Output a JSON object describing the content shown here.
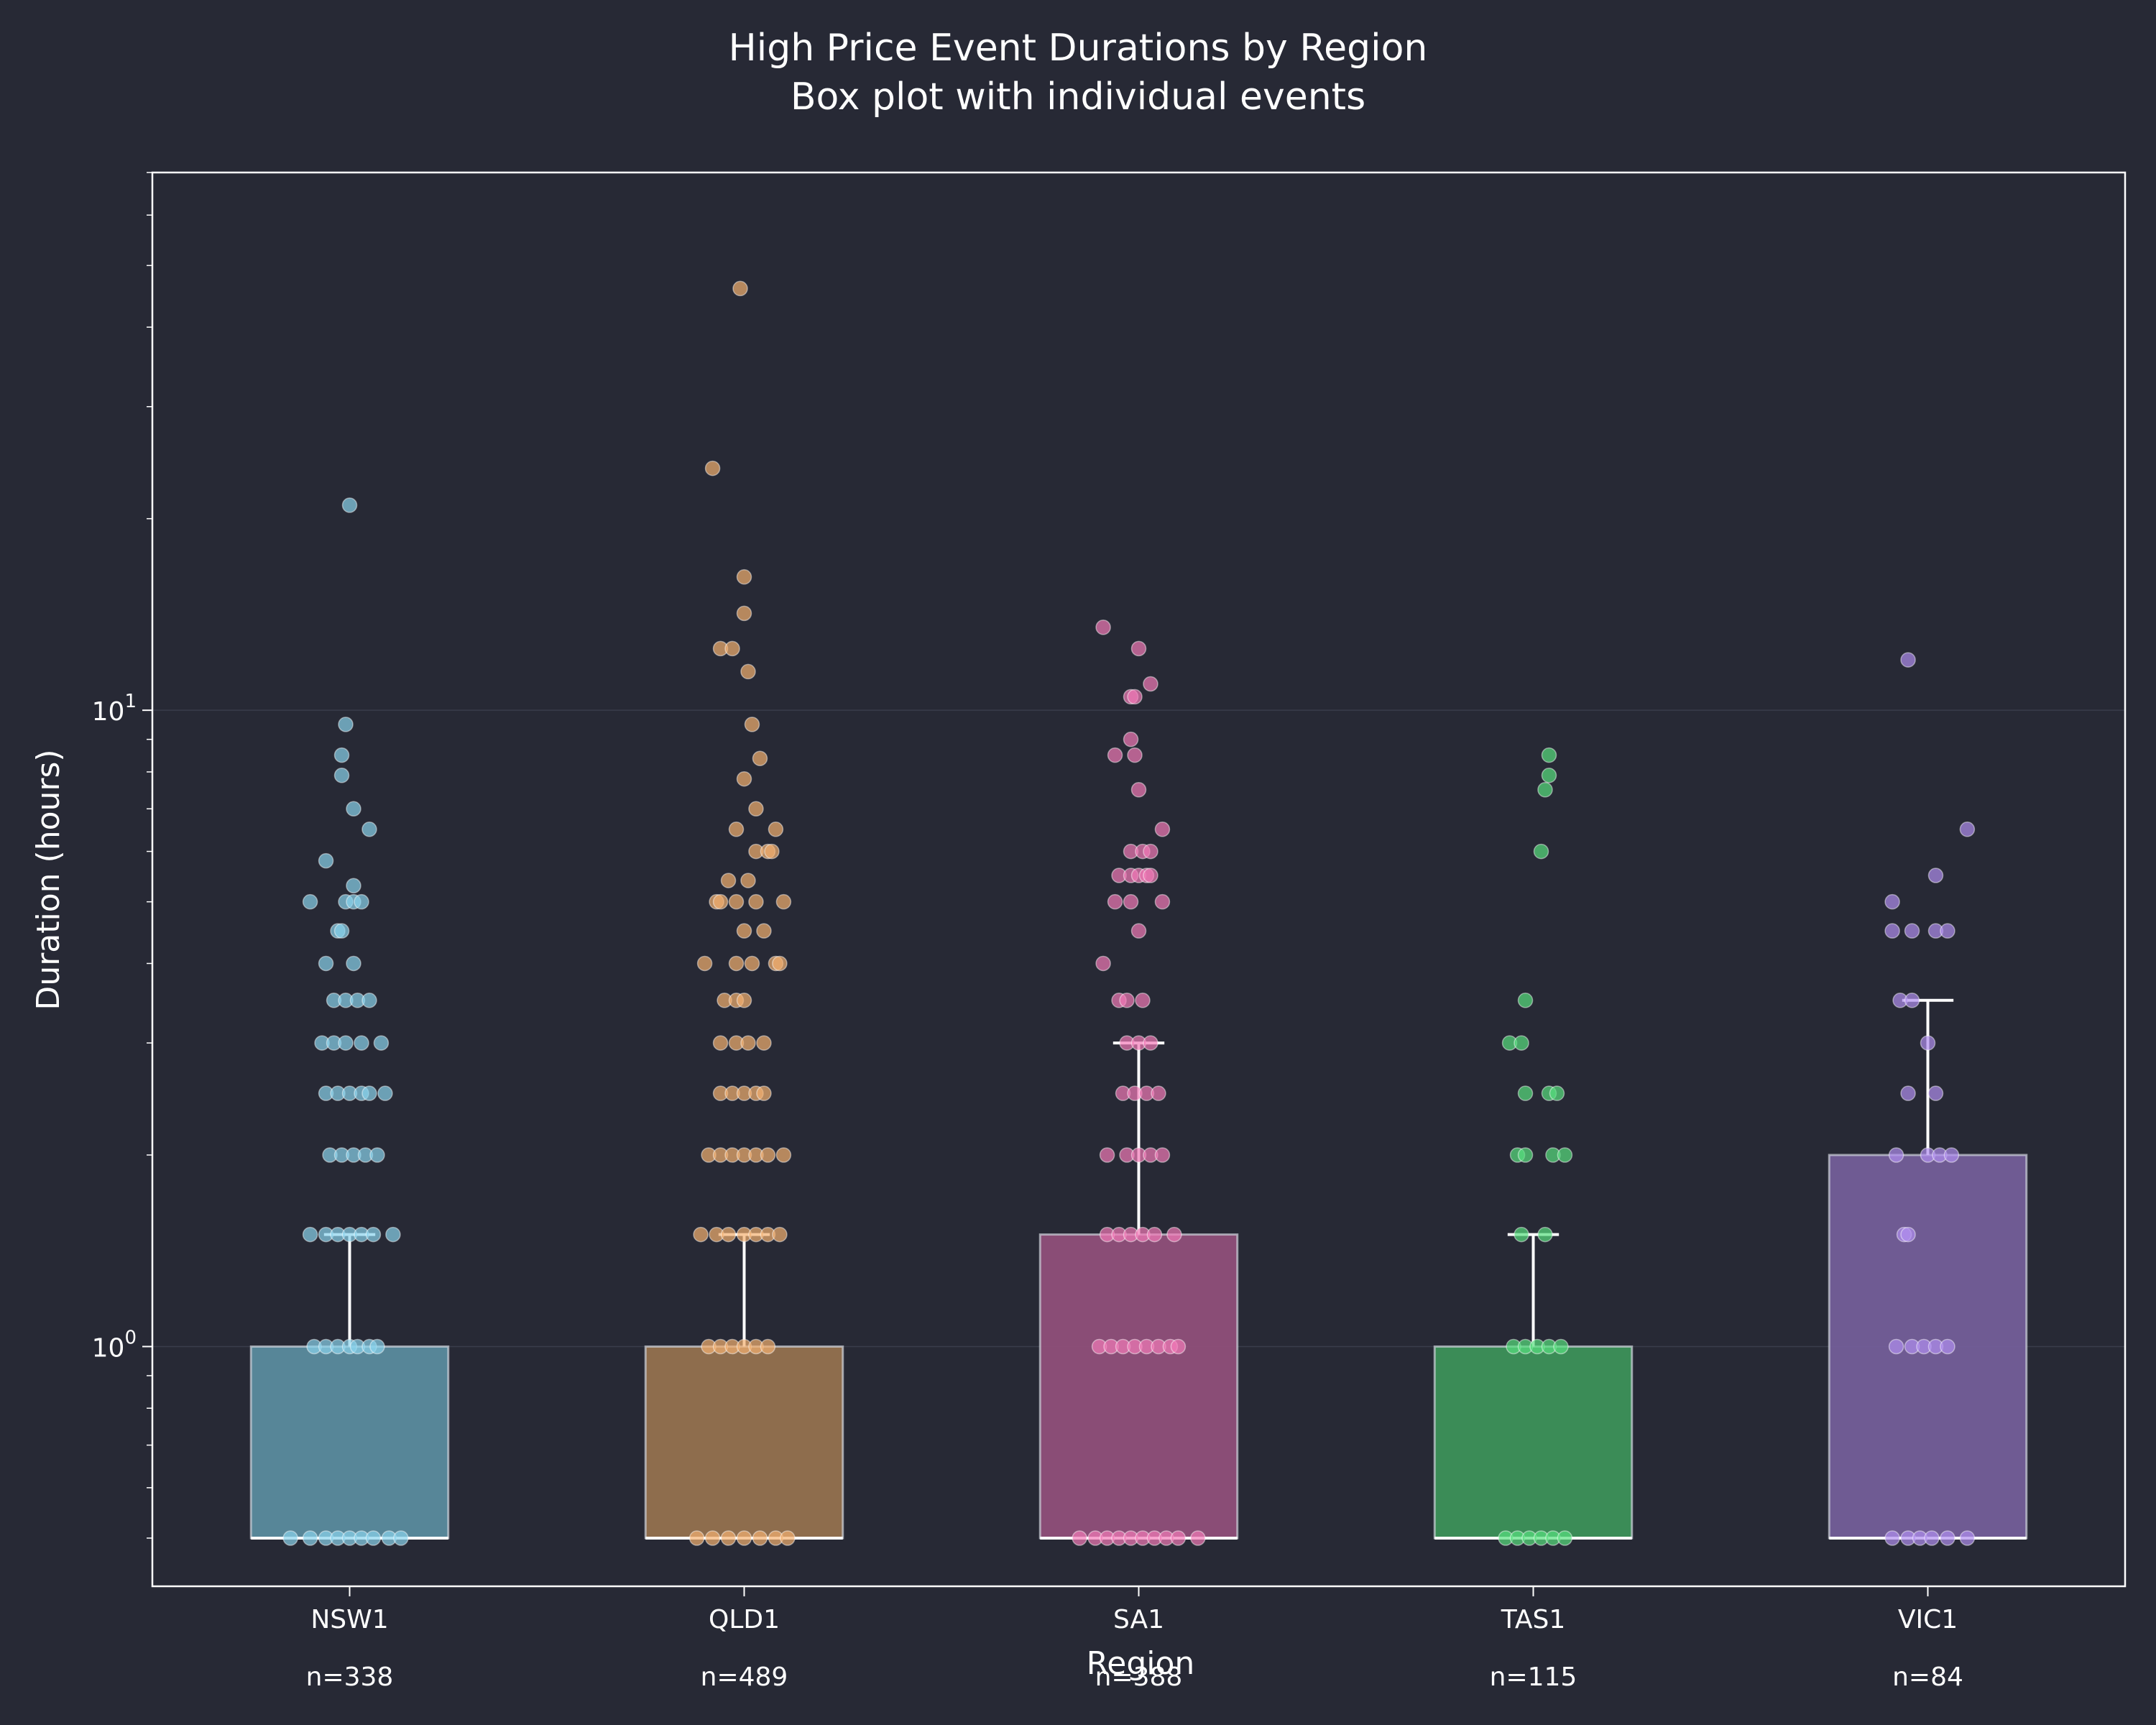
{
  "chart_data": {
    "type": "box",
    "title": "High Price Event Durations by Region",
    "subtitle": "Box plot with individual events",
    "xlabel": "Region",
    "ylabel": "Duration (hours)",
    "yscale": "log",
    "ylim": [
      0.42,
      70
    ],
    "y_tick_labels": [
      {
        "value": 1,
        "base": "10",
        "exp": "0"
      },
      {
        "value": 10,
        "base": "10",
        "exp": "1"
      }
    ],
    "grid": "horizontal major",
    "categories": [
      "NSW1",
      "QLD1",
      "SA1",
      "TAS1",
      "VIC1"
    ],
    "counts": [
      "n=338",
      "n=489",
      "n=388",
      "n=115",
      "n=84"
    ],
    "colors": [
      "#5a8b9e",
      "#93714f",
      "#8f4f7a",
      "#3c915a",
      "#735e99"
    ],
    "point_colors": [
      "#8ad3ec",
      "#f3b070",
      "#f27ab8",
      "#59e07f",
      "#b08ef0"
    ],
    "boxes": [
      {
        "q1": 0.5,
        "median": 0.5,
        "q3": 1.0,
        "whisker_low": 0.5,
        "whisker_high": 1.5
      },
      {
        "q1": 0.5,
        "median": 0.5,
        "q3": 1.0,
        "whisker_low": 0.5,
        "whisker_high": 1.5
      },
      {
        "q1": 0.5,
        "median": 0.5,
        "q3": 1.5,
        "whisker_low": 0.5,
        "whisker_high": 3.0
      },
      {
        "q1": 0.5,
        "median": 0.5,
        "q3": 1.0,
        "whisker_low": 0.5,
        "whisker_high": 1.5
      },
      {
        "q1": 0.5,
        "median": 0.5,
        "q3": 2.0,
        "whisker_low": 0.5,
        "whisker_high": 3.5
      }
    ],
    "points": [
      [
        [
          -0.15,
          0.5
        ],
        [
          -0.1,
          0.5
        ],
        [
          -0.06,
          0.5
        ],
        [
          -0.03,
          0.5
        ],
        [
          0,
          0.5
        ],
        [
          0.03,
          0.5
        ],
        [
          0.06,
          0.5
        ],
        [
          0.1,
          0.5
        ],
        [
          0.13,
          0.5
        ],
        [
          -0.09,
          1
        ],
        [
          -0.06,
          1
        ],
        [
          -0.03,
          1
        ],
        [
          0,
          1
        ],
        [
          0.02,
          1
        ],
        [
          0.05,
          1
        ],
        [
          0.07,
          1
        ],
        [
          -0.1,
          1.5
        ],
        [
          -0.06,
          1.5
        ],
        [
          -0.03,
          1.5
        ],
        [
          0,
          1.5
        ],
        [
          0.03,
          1.5
        ],
        [
          0.06,
          1.5
        ],
        [
          0.11,
          1.5
        ],
        [
          -0.05,
          2
        ],
        [
          -0.02,
          2
        ],
        [
          0.01,
          2
        ],
        [
          0.04,
          2
        ],
        [
          0.07,
          2
        ],
        [
          -0.06,
          2.5
        ],
        [
          -0.03,
          2.5
        ],
        [
          0,
          2.5
        ],
        [
          0.03,
          2.5
        ],
        [
          0.05,
          2.5
        ],
        [
          0.09,
          2.5
        ],
        [
          -0.07,
          3
        ],
        [
          -0.04,
          3
        ],
        [
          -0.01,
          3
        ],
        [
          0.03,
          3
        ],
        [
          0.08,
          3
        ],
        [
          -0.04,
          3.5
        ],
        [
          -0.01,
          3.5
        ],
        [
          0.02,
          3.5
        ],
        [
          0.05,
          3.5
        ],
        [
          -0.06,
          4
        ],
        [
          0.01,
          4
        ],
        [
          -0.03,
          4.5
        ],
        [
          -0.02,
          4.5
        ],
        [
          -0.1,
          5
        ],
        [
          -0.01,
          5
        ],
        [
          0.01,
          5
        ],
        [
          0.03,
          5
        ],
        [
          -0.06,
          5.8
        ],
        [
          0.01,
          5.3
        ],
        [
          0.05,
          6.5
        ],
        [
          0.01,
          7
        ],
        [
          -0.02,
          7.9
        ],
        [
          -0.02,
          8.5
        ],
        [
          -0.01,
          9.5
        ],
        [
          0,
          21
        ]
      ],
      [
        [
          -0.12,
          0.5
        ],
        [
          -0.08,
          0.5
        ],
        [
          -0.04,
          0.5
        ],
        [
          0,
          0.5
        ],
        [
          0.04,
          0.5
        ],
        [
          0.08,
          0.5
        ],
        [
          0.11,
          0.5
        ],
        [
          -0.09,
          1
        ],
        [
          -0.06,
          1
        ],
        [
          -0.03,
          1
        ],
        [
          0,
          1
        ],
        [
          0.03,
          1
        ],
        [
          0.06,
          1
        ],
        [
          -0.11,
          1.5
        ],
        [
          -0.07,
          1.5
        ],
        [
          -0.04,
          1.5
        ],
        [
          0,
          1.5
        ],
        [
          0.03,
          1.5
        ],
        [
          0.06,
          1.5
        ],
        [
          0.09,
          1.5
        ],
        [
          -0.09,
          2
        ],
        [
          -0.06,
          2
        ],
        [
          -0.03,
          2
        ],
        [
          0,
          2
        ],
        [
          0.03,
          2
        ],
        [
          0.06,
          2
        ],
        [
          0.1,
          2
        ],
        [
          -0.06,
          2.5
        ],
        [
          -0.03,
          2.5
        ],
        [
          0,
          2.5
        ],
        [
          0.03,
          2.5
        ],
        [
          0.05,
          2.5
        ],
        [
          -0.06,
          3
        ],
        [
          -0.02,
          3
        ],
        [
          0.01,
          3
        ],
        [
          0.05,
          3
        ],
        [
          -0.05,
          3.5
        ],
        [
          -0.02,
          3.5
        ],
        [
          0,
          3.5
        ],
        [
          -0.1,
          4
        ],
        [
          -0.02,
          4
        ],
        [
          0.02,
          4
        ],
        [
          0.08,
          4
        ],
        [
          0.09,
          4
        ],
        [
          0,
          4.5
        ],
        [
          0.05,
          4.5
        ],
        [
          -0.07,
          5
        ],
        [
          -0.06,
          5
        ],
        [
          -0.02,
          5
        ],
        [
          0.03,
          5
        ],
        [
          0.1,
          5
        ],
        [
          -0.04,
          5.4
        ],
        [
          0.01,
          5.4
        ],
        [
          0.03,
          6
        ],
        [
          0.06,
          6
        ],
        [
          0.07,
          6
        ],
        [
          -0.02,
          6.5
        ],
        [
          0.08,
          6.5
        ],
        [
          0.03,
          7
        ],
        [
          0,
          7.8
        ],
        [
          0.04,
          8.4
        ],
        [
          0.02,
          9.5
        ],
        [
          0.01,
          11.5
        ],
        [
          -0.06,
          12.5
        ],
        [
          -0.03,
          12.5
        ],
        [
          0,
          14.2
        ],
        [
          0,
          16.2
        ],
        [
          -0.08,
          24
        ],
        [
          -0.01,
          46
        ]
      ],
      [
        [
          -0.15,
          0.5
        ],
        [
          -0.11,
          0.5
        ],
        [
          -0.08,
          0.5
        ],
        [
          -0.05,
          0.5
        ],
        [
          -0.02,
          0.5
        ],
        [
          0.01,
          0.5
        ],
        [
          0.04,
          0.5
        ],
        [
          0.07,
          0.5
        ],
        [
          0.1,
          0.5
        ],
        [
          0.15,
          0.5
        ],
        [
          -0.1,
          1
        ],
        [
          -0.07,
          1
        ],
        [
          -0.04,
          1
        ],
        [
          -0.01,
          1
        ],
        [
          0.02,
          1
        ],
        [
          0.05,
          1
        ],
        [
          0.08,
          1
        ],
        [
          0.1,
          1
        ],
        [
          -0.08,
          1.5
        ],
        [
          -0.05,
          1.5
        ],
        [
          -0.02,
          1.5
        ],
        [
          0.01,
          1.5
        ],
        [
          0.04,
          1.5
        ],
        [
          0.09,
          1.5
        ],
        [
          -0.08,
          2
        ],
        [
          -0.03,
          2
        ],
        [
          0,
          2
        ],
        [
          0.03,
          2
        ],
        [
          0.06,
          2
        ],
        [
          -0.04,
          2.5
        ],
        [
          -0.01,
          2.5
        ],
        [
          0.02,
          2.5
        ],
        [
          0.05,
          2.5
        ],
        [
          -0.03,
          3
        ],
        [
          0,
          3
        ],
        [
          0.03,
          3
        ],
        [
          -0.05,
          3.5
        ],
        [
          -0.03,
          3.5
        ],
        [
          0.01,
          3.5
        ],
        [
          -0.09,
          4
        ],
        [
          0,
          4.5
        ],
        [
          -0.06,
          5
        ],
        [
          -0.02,
          5
        ],
        [
          0.06,
          5
        ],
        [
          -0.05,
          5.5
        ],
        [
          -0.02,
          5.5
        ],
        [
          0,
          5.5
        ],
        [
          0.02,
          5.5
        ],
        [
          0.03,
          5.5
        ],
        [
          -0.02,
          6
        ],
        [
          0.01,
          6
        ],
        [
          0.03,
          6
        ],
        [
          0.06,
          6.5
        ],
        [
          0,
          7.5
        ],
        [
          -0.06,
          8.5
        ],
        [
          -0.01,
          8.5
        ],
        [
          -0.02,
          9
        ],
        [
          -0.02,
          10.5
        ],
        [
          -0.01,
          10.5
        ],
        [
          0.03,
          11
        ],
        [
          0,
          12.5
        ],
        [
          -0.09,
          13.5
        ]
      ],
      [
        [
          -0.07,
          0.5
        ],
        [
          -0.04,
          0.5
        ],
        [
          -0.01,
          0.5
        ],
        [
          0.02,
          0.5
        ],
        [
          0.05,
          0.5
        ],
        [
          0.08,
          0.5
        ],
        [
          -0.05,
          1
        ],
        [
          -0.02,
          1
        ],
        [
          0.01,
          1
        ],
        [
          0.04,
          1
        ],
        [
          0.07,
          1
        ],
        [
          -0.03,
          1.5
        ],
        [
          0.03,
          1.5
        ],
        [
          -0.04,
          2
        ],
        [
          -0.02,
          2
        ],
        [
          0.05,
          2
        ],
        [
          0.08,
          2
        ],
        [
          -0.02,
          2.5
        ],
        [
          0.04,
          2.5
        ],
        [
          0.06,
          2.5
        ],
        [
          -0.06,
          3
        ],
        [
          -0.03,
          3
        ],
        [
          -0.02,
          3.5
        ],
        [
          0.02,
          6
        ],
        [
          0.03,
          7.5
        ],
        [
          0.04,
          7.9
        ],
        [
          0.04,
          8.5
        ]
      ],
      [
        [
          -0.09,
          0.5
        ],
        [
          -0.05,
          0.5
        ],
        [
          -0.02,
          0.5
        ],
        [
          0.01,
          0.5
        ],
        [
          0.05,
          0.5
        ],
        [
          0.1,
          0.5
        ],
        [
          -0.08,
          1
        ],
        [
          -0.04,
          1
        ],
        [
          -0.01,
          1
        ],
        [
          0.02,
          1
        ],
        [
          0.05,
          1
        ],
        [
          -0.06,
          1.5
        ],
        [
          -0.05,
          1.5
        ],
        [
          -0.08,
          2
        ],
        [
          0,
          2
        ],
        [
          0.03,
          2
        ],
        [
          0.06,
          2
        ],
        [
          -0.05,
          2.5
        ],
        [
          0.02,
          2.5
        ],
        [
          0,
          3
        ],
        [
          -0.07,
          3.5
        ],
        [
          -0.04,
          3.5
        ],
        [
          -0.09,
          4.5
        ],
        [
          -0.04,
          4.5
        ],
        [
          0.02,
          4.5
        ],
        [
          0.05,
          4.5
        ],
        [
          -0.09,
          5
        ],
        [
          0.02,
          5.5
        ],
        [
          0.1,
          6.5
        ],
        [
          -0.05,
          12
        ]
      ]
    ]
  }
}
